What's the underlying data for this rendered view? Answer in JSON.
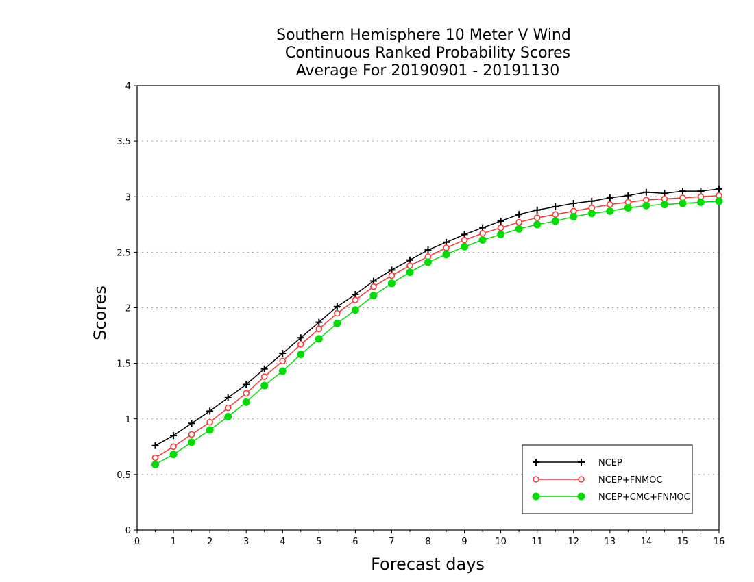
{
  "chart_data": {
    "type": "line",
    "title": [
      "Southern Hemisphere 10 Meter V Wind",
      "Continuous Ranked Probability Scores",
      "Average For 20190901 - 20191130"
    ],
    "xlabel": "Forecast days",
    "ylabel": "Scores",
    "xlim": [
      0,
      16
    ],
    "ylim": [
      0,
      4
    ],
    "xticks": [
      "0",
      "1",
      "2",
      "3",
      "4",
      "5",
      "6",
      "7",
      "8",
      "9",
      "10",
      "11",
      "12",
      "13",
      "14",
      "15",
      "16"
    ],
    "yticks": [
      "0",
      "0.5",
      "1",
      "1.5",
      "2",
      "2.5",
      "3",
      "3.5",
      "4"
    ],
    "grid": true,
    "legend_position": "bottom-right",
    "x": [
      0.5,
      1,
      1.5,
      2,
      2.5,
      3,
      3.5,
      4,
      4.5,
      5,
      5.5,
      6,
      6.5,
      7,
      7.5,
      8,
      8.5,
      9,
      9.5,
      10,
      10.5,
      11,
      11.5,
      12,
      12.5,
      13,
      13.5,
      14,
      14.5,
      15,
      15.5,
      16
    ],
    "series": [
      {
        "name": "NCEP",
        "color": "#000000",
        "marker": "plus",
        "values": [
          0.76,
          0.85,
          0.96,
          1.07,
          1.19,
          1.31,
          1.45,
          1.59,
          1.73,
          1.87,
          2.01,
          2.12,
          2.24,
          2.34,
          2.43,
          2.52,
          2.59,
          2.66,
          2.72,
          2.78,
          2.84,
          2.88,
          2.91,
          2.94,
          2.96,
          2.99,
          3.01,
          3.04,
          3.03,
          3.05,
          3.05,
          3.07
        ]
      },
      {
        "name": "NCEP+FNMOC",
        "color": "#ff3333",
        "marker": "open-circle",
        "values": [
          0.65,
          0.75,
          0.86,
          0.97,
          1.1,
          1.23,
          1.38,
          1.52,
          1.67,
          1.81,
          1.95,
          2.07,
          2.19,
          2.29,
          2.38,
          2.46,
          2.54,
          2.61,
          2.67,
          2.72,
          2.77,
          2.81,
          2.84,
          2.87,
          2.9,
          2.93,
          2.95,
          2.97,
          2.98,
          2.99,
          3.0,
          3.01
        ]
      },
      {
        "name": "NCEP+CMC+FNMOC",
        "color": "#00dd00",
        "marker": "filled-circle",
        "values": [
          0.59,
          0.68,
          0.79,
          0.9,
          1.02,
          1.15,
          1.3,
          1.43,
          1.58,
          1.72,
          1.86,
          1.98,
          2.11,
          2.22,
          2.32,
          2.41,
          2.48,
          2.55,
          2.61,
          2.66,
          2.71,
          2.75,
          2.78,
          2.82,
          2.85,
          2.87,
          2.9,
          2.92,
          2.93,
          2.94,
          2.95,
          2.96
        ]
      }
    ]
  }
}
